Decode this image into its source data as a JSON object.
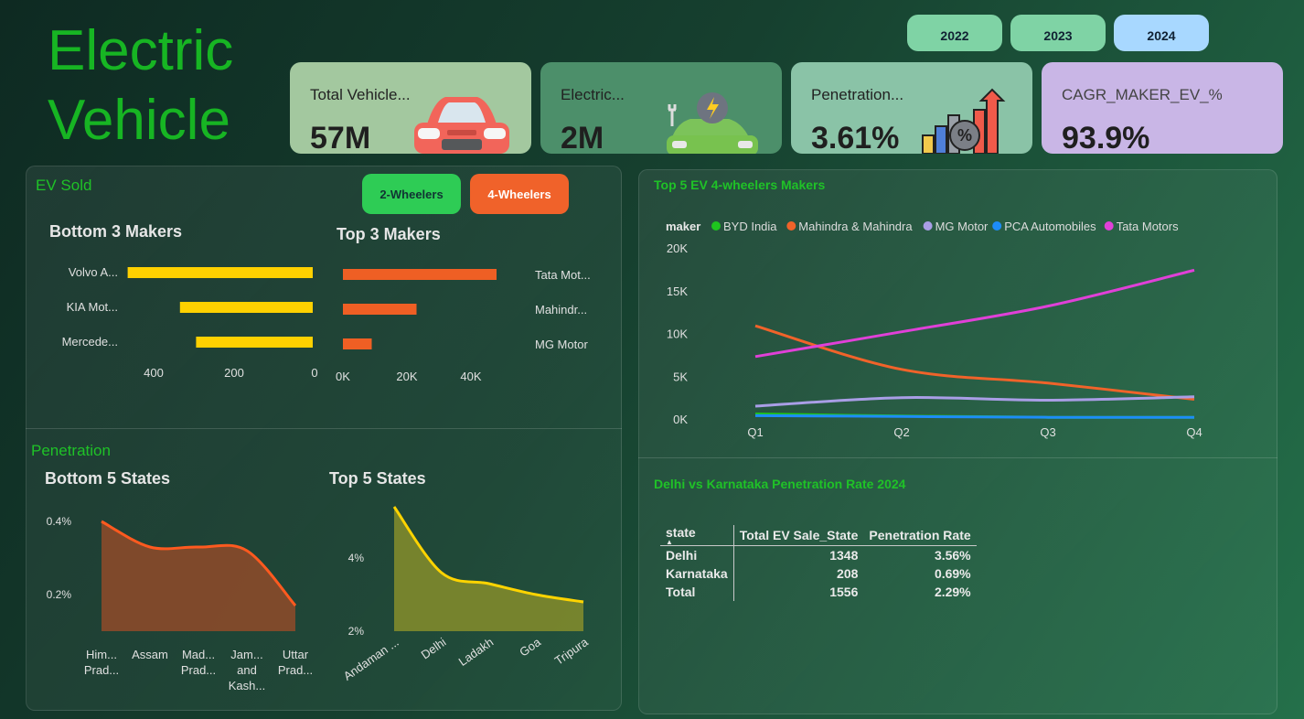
{
  "header": {
    "title_line1": "Electric",
    "title_line2": "Vehicle",
    "years": [
      {
        "label": "2022",
        "color": "#7fd3a5",
        "selected": false
      },
      {
        "label": "2023",
        "color": "#7fd3a5",
        "selected": false
      },
      {
        "label": "2024",
        "color": "#a8d8ff",
        "selected": true
      }
    ]
  },
  "kpis": [
    {
      "label": "Total Vehicle...",
      "value": "57M",
      "bg": "#a3c89f",
      "icon": "car-icon"
    },
    {
      "label": "Electric...",
      "value": "2M",
      "bg": "#4c8f6a",
      "icon": "ev-charging-car-icon"
    },
    {
      "label": "Penetration...",
      "value": "3.61%",
      "bg": "#8ac3a7",
      "icon": "growth-chart-percent-icon"
    },
    {
      "label": "CAGR_MAKER_EV_%",
      "value": "93.9%",
      "bg": "#c9b6e6",
      "icon": ""
    }
  ],
  "ev_sold": {
    "title": "EV Sold",
    "toggle_2w": "2-Wheelers",
    "toggle_4w": "4-Wheelers",
    "colors": {
      "toggle_2w": "#2ecc55",
      "toggle_4w": "#f0622a",
      "bottom_bar": "#ffd100",
      "top_bar": "#ef5f24"
    }
  },
  "penetration": {
    "title": "Penetration",
    "colors": {
      "bottom_area": "#8a4a2a",
      "bottom_line": "#ff5a1f",
      "top_area": "#7f8a2c",
      "top_line": "#ffd400"
    }
  },
  "top5_panel": {
    "title": "Top 5 EV 4-wheelers Makers",
    "legend_title": "maker"
  },
  "delhi_panel": {
    "title": "Delhi vs Karnataka Penetration Rate 2024",
    "columns": [
      "state",
      "Total EV Sale_State",
      "Penetration Rate"
    ],
    "rows": [
      {
        "state": "Delhi",
        "sales": "1348",
        "rate": "3.56%"
      },
      {
        "state": "Karnataka",
        "sales": "208",
        "rate": "0.69%"
      },
      {
        "state": "Total",
        "sales": "1556",
        "rate": "2.29%"
      }
    ]
  },
  "chart_data": [
    {
      "type": "bar",
      "title": "Bottom 3 Makers",
      "categories": [
        "Volvo A...",
        "KIA Mot...",
        "Mercede..."
      ],
      "values": [
        460,
        330,
        290
      ],
      "xlim": [
        0,
        500
      ],
      "ticks": [
        "400",
        "200",
        "0"
      ],
      "tick_values": [
        400,
        200,
        0
      ],
      "orientation": "horizontal-reversed"
    },
    {
      "type": "bar",
      "title": "Top 3 Makers",
      "categories": [
        "Tata Mot...",
        "Mahindr...",
        "MG Motor"
      ],
      "values": [
        48000,
        23000,
        9000
      ],
      "xlim": [
        0,
        50000
      ],
      "ticks": [
        "0K",
        "20K",
        "40K"
      ],
      "tick_values": [
        0,
        20000,
        40000
      ],
      "orientation": "horizontal"
    },
    {
      "type": "area",
      "title": "Bottom 5 States",
      "categories": [
        "Him... Prad...",
        "Assam",
        "Mad... Prad...",
        "Jam... and Kash...",
        "Uttar Prad..."
      ],
      "values": [
        0.4,
        0.33,
        0.33,
        0.32,
        0.17
      ],
      "ylim": [
        0.1,
        0.45
      ],
      "ticks": [
        "0.2%",
        "0.4%"
      ],
      "tick_values": [
        0.2,
        0.4
      ]
    },
    {
      "type": "area",
      "title": "Top 5 States",
      "categories": [
        "Andaman ...",
        "Delhi",
        "Ladakh",
        "Goa",
        "Tripura"
      ],
      "values": [
        5.4,
        3.6,
        3.3,
        3.0,
        2.8
      ],
      "ylim": [
        2,
        5.5
      ],
      "ticks": [
        "2%",
        "4%"
      ],
      "tick_values": [
        2,
        4
      ]
    },
    {
      "type": "line",
      "title": "Top 5 EV 4-wheelers Makers",
      "x": [
        "Q1",
        "Q2",
        "Q3",
        "Q4"
      ],
      "ylim": [
        0,
        20000
      ],
      "ticks": [
        "0K",
        "5K",
        "10K",
        "15K",
        "20K"
      ],
      "tick_values": [
        0,
        5000,
        10000,
        15000,
        20000
      ],
      "series": [
        {
          "name": "BYD India",
          "color": "#1ec41e",
          "values": [
            700,
            450,
            300,
            300
          ]
        },
        {
          "name": "Mahindra & Mahindra",
          "color": "#f0632a",
          "values": [
            11000,
            5900,
            4300,
            2400
          ]
        },
        {
          "name": "MG Motor",
          "color": "#a99ee6",
          "values": [
            1600,
            2600,
            2300,
            2700
          ]
        },
        {
          "name": "PCA Automobiles",
          "color": "#1d8cf8",
          "values": [
            500,
            400,
            300,
            300
          ]
        },
        {
          "name": "Tata Motors",
          "color": "#e040d8",
          "values": [
            7400,
            10300,
            13300,
            17500
          ]
        }
      ]
    }
  ]
}
